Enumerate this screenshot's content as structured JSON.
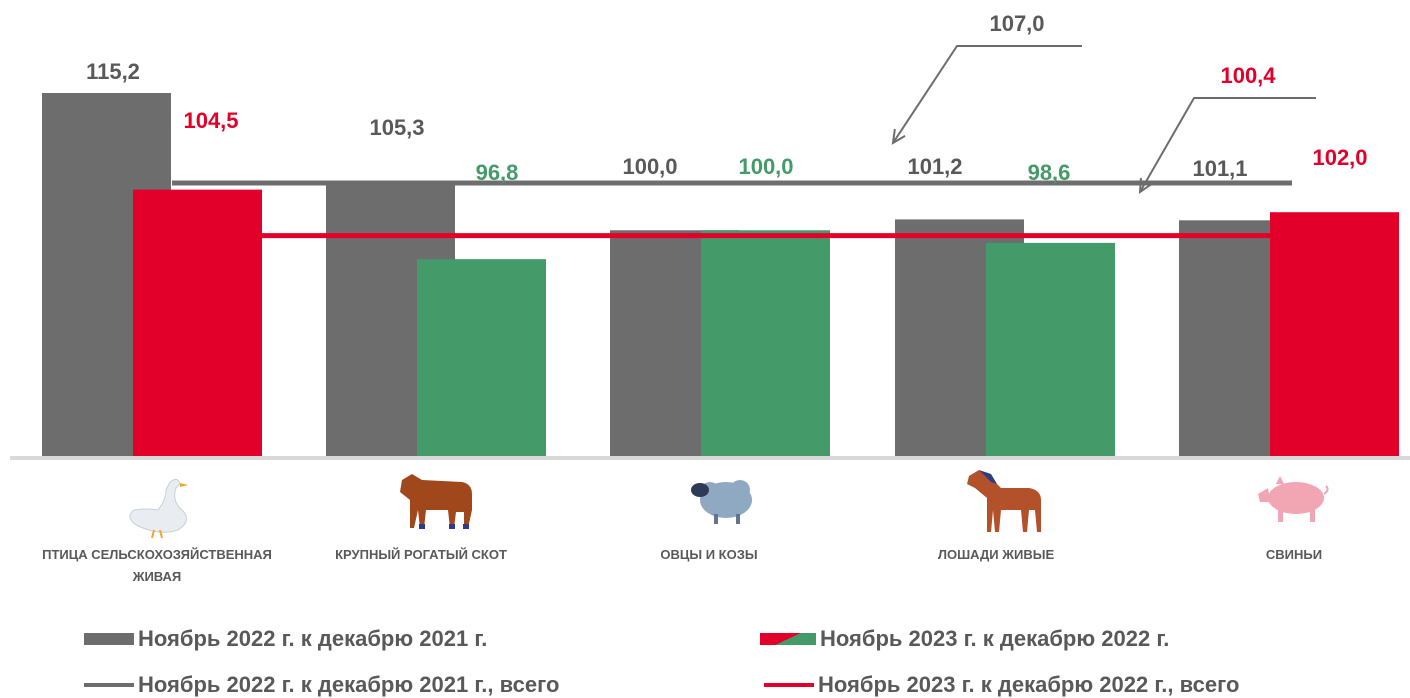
{
  "chart_data": {
    "type": "bar",
    "categories": [
      {
        "label_lines": [
          "ПТИЦА СЕЛЬСКОХОЗЯЙСТВЕННАЯ",
          "ЖИВАЯ"
        ],
        "icon": "goose-icon"
      },
      {
        "label_lines": [
          "КРУПНЫЙ РОГАТЫЙ СКОТ"
        ],
        "icon": "cow-icon"
      },
      {
        "label_lines": [
          "ОВЦЫ И КОЗЫ"
        ],
        "icon": "sheep-icon"
      },
      {
        "label_lines": [
          "ЛОШАДИ ЖИВЫЕ"
        ],
        "icon": "horse-icon"
      },
      {
        "label_lines": [
          "СВИНЬИ"
        ],
        "icon": "pig-icon"
      }
    ],
    "series": [
      {
        "name": "Ноябрь 2022 г. к декабрю 2021 г.",
        "values": [
          115.2,
          105.3,
          100.0,
          101.2,
          101.1
        ],
        "labels": [
          "115,2",
          "105,3",
          "100,0",
          "101,2",
          "101,1"
        ]
      },
      {
        "name": "Ноябрь 2023 г. к декабрю 2022 г.",
        "values": [
          104.5,
          96.8,
          100.0,
          98.6,
          102.0
        ],
        "labels": [
          "104,5",
          "96,8",
          "100,0",
          "98,6",
          "102,0"
        ]
      }
    ],
    "reference_lines": [
      {
        "name": "Ноябрь 2022 г. к декабрю 2021 г., всего",
        "value": 107.0,
        "label": "107,0",
        "color": "#6d6d6d"
      },
      {
        "name": "Ноябрь 2023 г. к декабрю 2022 г., всего",
        "value": 100.4,
        "label": "100,4",
        "color": "#e2002b"
      }
    ],
    "ylim": [
      75,
      115.2
    ],
    "colors": {
      "grey": "#6d6d6d",
      "red": "#e2002b",
      "green": "#459a69",
      "label_grey": "#595959"
    },
    "legend_position": "bottom"
  },
  "legend": {
    "bar_2022": "Ноябрь 2022 г. к декабрю 2021 г.",
    "bar_2023": "Ноябрь 2023 г. к декабрю 2022 г.",
    "line_2022": "Ноябрь 2022 г. к декабрю 2021 г., всего",
    "line_2023": "Ноябрь 2023 г. к декабрю 2022 г., всего"
  }
}
